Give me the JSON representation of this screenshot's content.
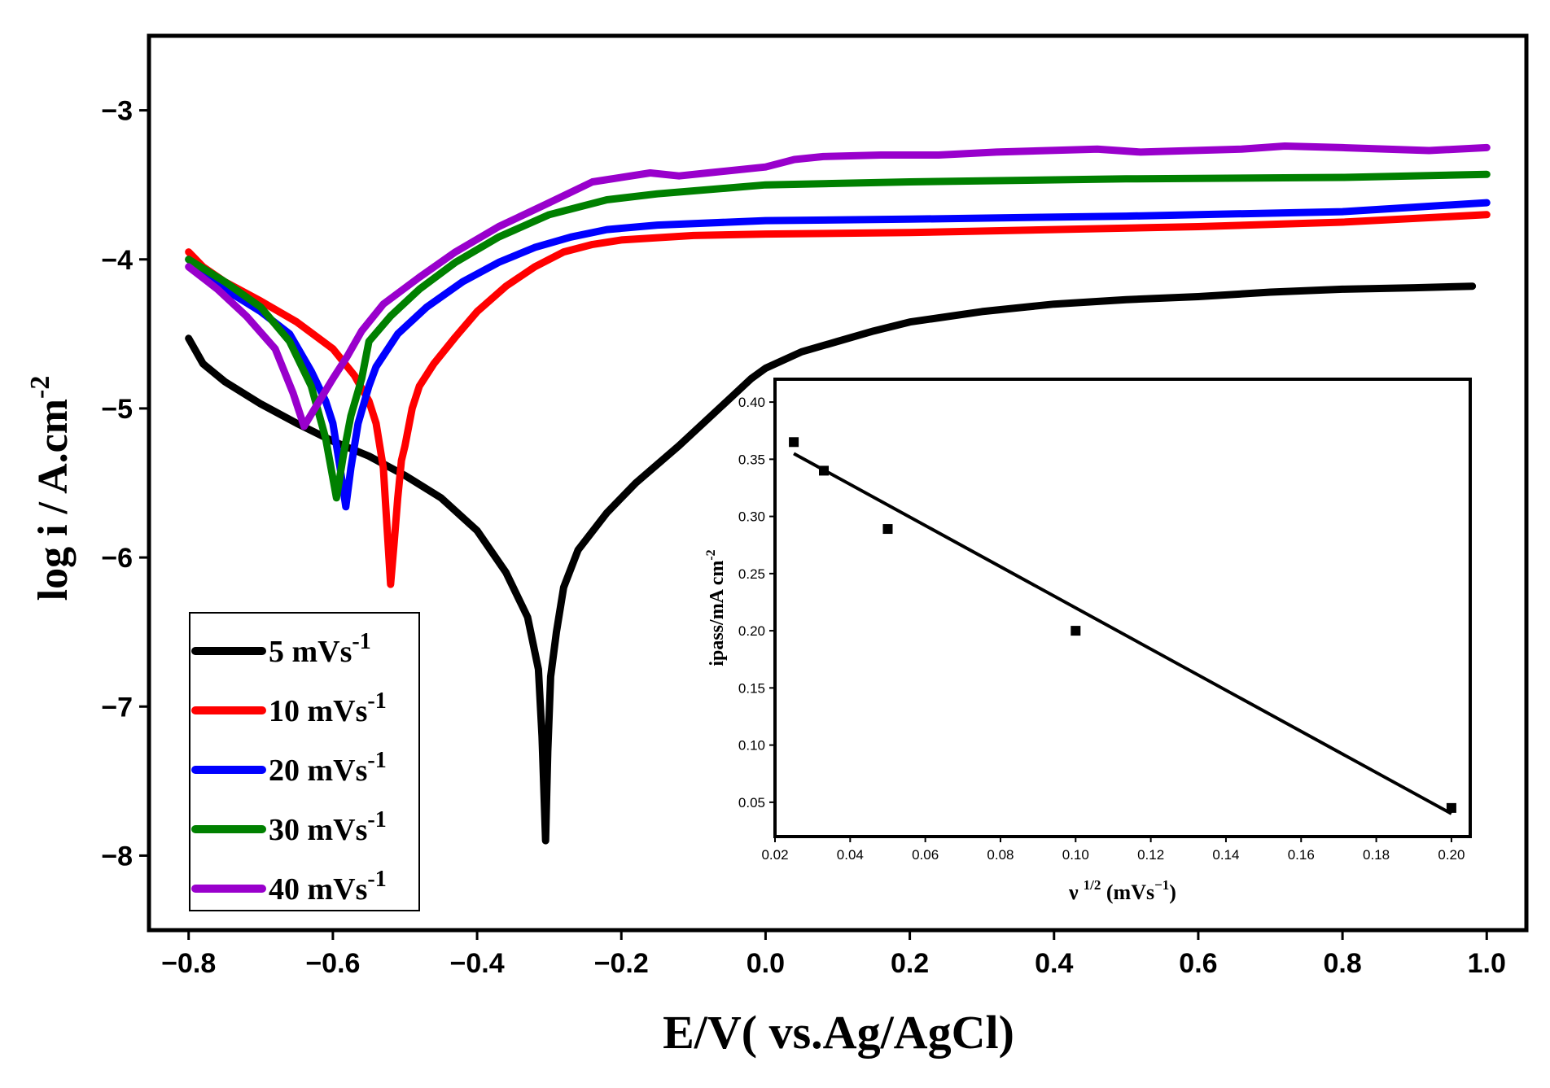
{
  "chart_data": [
    {
      "type": "line",
      "title": "",
      "xlabel": "E/V( vs.Ag/AgCl)",
      "ylabel": "log i / A.cm",
      "ylabel_sup": "-2",
      "xlim": [
        -0.855,
        1.055
      ],
      "ylim": [
        -8.5,
        -2.5
      ],
      "xticks": [
        -0.8,
        -0.6,
        -0.4,
        -0.2,
        0.0,
        0.2,
        0.4,
        0.6,
        0.8,
        1.0
      ],
      "xtick_labels": [
        "−0.8",
        "−0.6",
        "−0.4",
        "−0.2",
        "0.0",
        "0.2",
        "0.4",
        "0.6",
        "0.8",
        "1.0"
      ],
      "yticks": [
        -3,
        -4,
        -5,
        -6,
        -7,
        -8
      ],
      "ytick_labels": [
        "−3",
        "−4",
        "−5",
        "−6",
        "−7",
        "−8"
      ],
      "grid": false,
      "legend_position": "bottom-left",
      "series": [
        {
          "name": "5",
          "label_main": "5   mVs",
          "label_sup": "-1",
          "color": "#000000",
          "points": [
            [
              -0.8,
              -4.53
            ],
            [
              -0.78,
              -4.7
            ],
            [
              -0.75,
              -4.82
            ],
            [
              -0.7,
              -4.97
            ],
            [
              -0.65,
              -5.1
            ],
            [
              -0.6,
              -5.22
            ],
            [
              -0.55,
              -5.32
            ],
            [
              -0.5,
              -5.45
            ],
            [
              -0.45,
              -5.6
            ],
            [
              -0.4,
              -5.82
            ],
            [
              -0.36,
              -6.1
            ],
            [
              -0.33,
              -6.4
            ],
            [
              -0.315,
              -6.75
            ],
            [
              -0.31,
              -7.2
            ],
            [
              -0.305,
              -7.9
            ],
            [
              -0.302,
              -7.3
            ],
            [
              -0.298,
              -6.8
            ],
            [
              -0.29,
              -6.5
            ],
            [
              -0.28,
              -6.2
            ],
            [
              -0.26,
              -5.95
            ],
            [
              -0.22,
              -5.7
            ],
            [
              -0.18,
              -5.5
            ],
            [
              -0.12,
              -5.25
            ],
            [
              -0.06,
              -4.98
            ],
            [
              -0.02,
              -4.8
            ],
            [
              0.0,
              -4.73
            ],
            [
              0.05,
              -4.62
            ],
            [
              0.1,
              -4.55
            ],
            [
              0.15,
              -4.48
            ],
            [
              0.2,
              -4.42
            ],
            [
              0.3,
              -4.35
            ],
            [
              0.4,
              -4.3
            ],
            [
              0.5,
              -4.27
            ],
            [
              0.6,
              -4.25
            ],
            [
              0.7,
              -4.22
            ],
            [
              0.8,
              -4.2
            ],
            [
              0.9,
              -4.19
            ],
            [
              0.98,
              -4.18
            ]
          ]
        },
        {
          "name": "10",
          "label_main": "10 mVs",
          "label_sup": "-1",
          "color": "#ff0000",
          "points": [
            [
              -0.8,
              -3.95
            ],
            [
              -0.78,
              -4.05
            ],
            [
              -0.75,
              -4.15
            ],
            [
              -0.7,
              -4.28
            ],
            [
              -0.65,
              -4.42
            ],
            [
              -0.6,
              -4.6
            ],
            [
              -0.57,
              -4.78
            ],
            [
              -0.55,
              -4.95
            ],
            [
              -0.54,
              -5.1
            ],
            [
              -0.53,
              -5.4
            ],
            [
              -0.52,
              -6.18
            ],
            [
              -0.515,
              -5.9
            ],
            [
              -0.51,
              -5.6
            ],
            [
              -0.505,
              -5.35
            ],
            [
              -0.5,
              -5.25
            ],
            [
              -0.49,
              -5.0
            ],
            [
              -0.48,
              -4.85
            ],
            [
              -0.46,
              -4.7
            ],
            [
              -0.43,
              -4.52
            ],
            [
              -0.4,
              -4.35
            ],
            [
              -0.36,
              -4.18
            ],
            [
              -0.32,
              -4.05
            ],
            [
              -0.28,
              -3.95
            ],
            [
              -0.24,
              -3.9
            ],
            [
              -0.2,
              -3.87
            ],
            [
              -0.1,
              -3.84
            ],
            [
              0.0,
              -3.83
            ],
            [
              0.2,
              -3.82
            ],
            [
              0.4,
              -3.8
            ],
            [
              0.6,
              -3.78
            ],
            [
              0.8,
              -3.75
            ],
            [
              1.0,
              -3.7
            ]
          ]
        },
        {
          "name": "20",
          "label_main": "20 mVs",
          "label_sup": "-1",
          "color": "#0000ff",
          "points": [
            [
              -0.8,
              -4.0
            ],
            [
              -0.75,
              -4.2
            ],
            [
              -0.7,
              -4.35
            ],
            [
              -0.66,
              -4.5
            ],
            [
              -0.63,
              -4.75
            ],
            [
              -0.61,
              -4.95
            ],
            [
              -0.6,
              -5.1
            ],
            [
              -0.59,
              -5.4
            ],
            [
              -0.582,
              -5.66
            ],
            [
              -0.575,
              -5.4
            ],
            [
              -0.565,
              -5.1
            ],
            [
              -0.55,
              -4.85
            ],
            [
              -0.54,
              -4.72
            ],
            [
              -0.51,
              -4.5
            ],
            [
              -0.47,
              -4.32
            ],
            [
              -0.42,
              -4.15
            ],
            [
              -0.37,
              -4.02
            ],
            [
              -0.32,
              -3.92
            ],
            [
              -0.27,
              -3.85
            ],
            [
              -0.22,
              -3.8
            ],
            [
              -0.15,
              -3.77
            ],
            [
              0.0,
              -3.74
            ],
            [
              0.2,
              -3.73
            ],
            [
              0.5,
              -3.71
            ],
            [
              0.8,
              -3.68
            ],
            [
              1.0,
              -3.62
            ]
          ]
        },
        {
          "name": "30",
          "label_main": "30 mVs",
          "label_sup": "-1",
          "color": "#008000",
          "points": [
            [
              -0.8,
              -4.0
            ],
            [
              -0.75,
              -4.15
            ],
            [
              -0.7,
              -4.32
            ],
            [
              -0.66,
              -4.55
            ],
            [
              -0.63,
              -4.85
            ],
            [
              -0.61,
              -5.2
            ],
            [
              -0.595,
              -5.6
            ],
            [
              -0.585,
              -5.3
            ],
            [
              -0.575,
              -5.05
            ],
            [
              -0.56,
              -4.8
            ],
            [
              -0.55,
              -4.55
            ],
            [
              -0.52,
              -4.38
            ],
            [
              -0.48,
              -4.2
            ],
            [
              -0.43,
              -4.02
            ],
            [
              -0.37,
              -3.85
            ],
            [
              -0.3,
              -3.7
            ],
            [
              -0.22,
              -3.6
            ],
            [
              -0.15,
              -3.56
            ],
            [
              0.0,
              -3.5
            ],
            [
              0.2,
              -3.48
            ],
            [
              0.5,
              -3.46
            ],
            [
              0.8,
              -3.45
            ],
            [
              1.0,
              -3.43
            ]
          ]
        },
        {
          "name": "40",
          "label_main": "40 mVs",
          "label_sup": "-1",
          "color": "#9900cc",
          "points": [
            [
              -0.8,
              -4.05
            ],
            [
              -0.76,
              -4.2
            ],
            [
              -0.72,
              -4.38
            ],
            [
              -0.68,
              -4.6
            ],
            [
              -0.655,
              -4.9
            ],
            [
              -0.64,
              -5.12
            ],
            [
              -0.625,
              -5.0
            ],
            [
              -0.6,
              -4.8
            ],
            [
              -0.58,
              -4.65
            ],
            [
              -0.56,
              -4.48
            ],
            [
              -0.53,
              -4.3
            ],
            [
              -0.48,
              -4.12
            ],
            [
              -0.43,
              -3.95
            ],
            [
              -0.37,
              -3.78
            ],
            [
              -0.3,
              -3.62
            ],
            [
              -0.24,
              -3.48
            ],
            [
              -0.16,
              -3.42
            ],
            [
              -0.12,
              -3.44
            ],
            [
              -0.08,
              -3.42
            ],
            [
              0.0,
              -3.38
            ],
            [
              0.04,
              -3.33
            ],
            [
              0.08,
              -3.31
            ],
            [
              0.16,
              -3.3
            ],
            [
              0.24,
              -3.3
            ],
            [
              0.32,
              -3.28
            ],
            [
              0.46,
              -3.26
            ],
            [
              0.52,
              -3.28
            ],
            [
              0.66,
              -3.26
            ],
            [
              0.72,
              -3.24
            ],
            [
              0.8,
              -3.25
            ],
            [
              0.92,
              -3.27
            ],
            [
              1.0,
              -3.25
            ]
          ]
        }
      ]
    },
    {
      "type": "scatter",
      "title": "",
      "xlabel": "ν",
      "xlabel_sup": "1/2",
      "xlabel_rest": " (mVs",
      "xlabel_sup2": "−1",
      "xlabel_end": ")",
      "ylabel": "ipass/mA cm",
      "ylabel_sup": "-2",
      "xlim": [
        0.02,
        0.205
      ],
      "ylim": [
        0.02,
        0.42
      ],
      "xticks": [
        0.02,
        0.04,
        0.06,
        0.08,
        0.1,
        0.12,
        0.14,
        0.16,
        0.18,
        0.2
      ],
      "xtick_labels": [
        "0.02",
        "0.04",
        "0.06",
        "0.08",
        "0.10",
        "0.12",
        "0.14",
        "0.16",
        "0.18",
        "0.20"
      ],
      "yticks": [
        0.05,
        0.1,
        0.15,
        0.2,
        0.25,
        0.3,
        0.35,
        0.4
      ],
      "ytick_labels": [
        "0.05",
        "0.10",
        "0.15",
        "0.20",
        "0.25",
        "0.30",
        "0.35",
        "0.40"
      ],
      "grid": false,
      "points": [
        [
          0.025,
          0.365
        ],
        [
          0.033,
          0.34
        ],
        [
          0.05,
          0.289
        ],
        [
          0.1,
          0.2
        ],
        [
          0.2,
          0.045
        ]
      ],
      "fit_line": [
        [
          0.025,
          0.355
        ],
        [
          0.2,
          0.04
        ]
      ]
    }
  ]
}
